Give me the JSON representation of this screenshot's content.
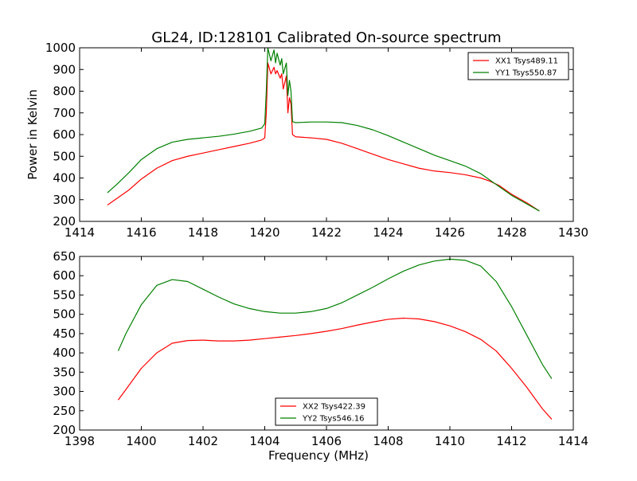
{
  "figure": {
    "title": "GL24, ID:128101 Calibrated On-source spectrum"
  },
  "chart_data": [
    {
      "type": "line",
      "title": "GL24, ID:128101 Calibrated On-source spectrum",
      "xlabel": "",
      "ylabel": "Power in Kelvin",
      "xlim": [
        1414,
        1430
      ],
      "ylim": [
        200,
        1000
      ],
      "xticks": [
        1414,
        1416,
        1418,
        1420,
        1422,
        1424,
        1426,
        1428,
        1430
      ],
      "yticks": [
        200,
        300,
        400,
        500,
        600,
        700,
        800,
        900,
        1000
      ],
      "legend_position": "top-right",
      "grid": false,
      "series": [
        {
          "name": "XX1 Tsys489.11",
          "color": "#ff0000",
          "x": [
            1414.9,
            1415.2,
            1415.6,
            1416.0,
            1416.5,
            1417.0,
            1417.5,
            1418.0,
            1418.5,
            1419.0,
            1419.5,
            1419.9,
            1420.0,
            1420.05,
            1420.1,
            1420.2,
            1420.3,
            1420.35,
            1420.4,
            1420.5,
            1420.55,
            1420.6,
            1420.65,
            1420.7,
            1420.75,
            1420.8,
            1420.85,
            1420.9,
            1421.0,
            1421.5,
            1422.0,
            1422.5,
            1423.0,
            1423.5,
            1424.0,
            1424.5,
            1425.0,
            1425.5,
            1426.0,
            1426.5,
            1427.0,
            1427.3,
            1427.6,
            1428.0,
            1428.5,
            1428.9
          ],
          "y": [
            275,
            305,
            345,
            395,
            445,
            480,
            500,
            515,
            530,
            545,
            560,
            575,
            585,
            700,
            930,
            880,
            910,
            880,
            895,
            860,
            880,
            810,
            840,
            870,
            700,
            770,
            740,
            600,
            590,
            585,
            578,
            560,
            535,
            510,
            485,
            465,
            445,
            432,
            425,
            415,
            400,
            385,
            365,
            325,
            285,
            248
          ]
        },
        {
          "name": "YY1 Tsys550.87",
          "color": "#008000",
          "x": [
            1414.9,
            1415.2,
            1415.6,
            1416.0,
            1416.5,
            1417.0,
            1417.5,
            1418.0,
            1418.5,
            1419.0,
            1419.5,
            1419.9,
            1420.0,
            1420.05,
            1420.1,
            1420.2,
            1420.3,
            1420.35,
            1420.4,
            1420.5,
            1420.55,
            1420.6,
            1420.65,
            1420.7,
            1420.75,
            1420.8,
            1420.85,
            1420.9,
            1421.0,
            1421.5,
            1422.0,
            1422.5,
            1423.0,
            1423.5,
            1424.0,
            1424.5,
            1425.0,
            1425.5,
            1426.0,
            1426.5,
            1427.0,
            1427.3,
            1427.6,
            1428.0,
            1428.5,
            1428.9
          ],
          "y": [
            332,
            370,
            425,
            485,
            535,
            565,
            578,
            585,
            592,
            602,
            615,
            630,
            650,
            800,
            1000,
            940,
            990,
            930,
            975,
            920,
            950,
            880,
            905,
            930,
            780,
            850,
            800,
            660,
            655,
            658,
            658,
            655,
            642,
            622,
            595,
            565,
            535,
            505,
            480,
            455,
            420,
            390,
            360,
            320,
            280,
            248
          ]
        }
      ]
    },
    {
      "type": "line",
      "title": "",
      "xlabel": "Frequency (MHz)",
      "ylabel": "",
      "xlim": [
        1398,
        1414
      ],
      "ylim": [
        200,
        650
      ],
      "xticks": [
        1398,
        1400,
        1402,
        1404,
        1406,
        1408,
        1410,
        1412,
        1414
      ],
      "yticks": [
        200,
        250,
        300,
        350,
        400,
        450,
        500,
        550,
        600,
        650
      ],
      "legend_position": "bottom-center",
      "grid": false,
      "series": [
        {
          "name": "XX2 Tsys422.39",
          "color": "#ff0000",
          "x": [
            1399.25,
            1399.5,
            1400.0,
            1400.5,
            1401.0,
            1401.5,
            1402.0,
            1402.5,
            1403.0,
            1403.5,
            1404.0,
            1404.5,
            1405.0,
            1405.5,
            1406.0,
            1406.5,
            1407.0,
            1407.5,
            1408.0,
            1408.5,
            1409.0,
            1409.5,
            1410.0,
            1410.5,
            1411.0,
            1411.5,
            1412.0,
            1412.5,
            1413.0,
            1413.3
          ],
          "y": [
            278,
            305,
            360,
            400,
            425,
            432,
            433,
            431,
            431,
            433,
            437,
            441,
            445,
            450,
            456,
            463,
            472,
            480,
            487,
            490,
            488,
            481,
            470,
            455,
            435,
            405,
            360,
            310,
            255,
            228
          ]
        },
        {
          "name": "YY2 Tsys546.16",
          "color": "#008000",
          "x": [
            1399.25,
            1399.5,
            1400.0,
            1400.5,
            1401.0,
            1401.5,
            1402.0,
            1402.5,
            1403.0,
            1403.5,
            1404.0,
            1404.5,
            1405.0,
            1405.5,
            1406.0,
            1406.5,
            1407.0,
            1407.5,
            1408.0,
            1408.5,
            1409.0,
            1409.5,
            1410.0,
            1410.5,
            1411.0,
            1411.5,
            1412.0,
            1412.5,
            1413.0,
            1413.3
          ],
          "y": [
            405,
            450,
            525,
            575,
            590,
            585,
            565,
            545,
            527,
            515,
            507,
            503,
            503,
            507,
            515,
            530,
            550,
            570,
            592,
            612,
            628,
            638,
            643,
            640,
            625,
            585,
            520,
            445,
            370,
            333
          ]
        }
      ]
    }
  ]
}
